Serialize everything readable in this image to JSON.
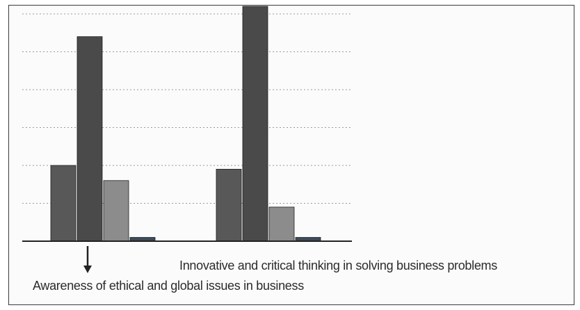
{
  "chart_data": {
    "type": "bar",
    "title": "",
    "xlabel": "",
    "ylabel": "",
    "ylim": [
      0,
      60
    ],
    "grid": true,
    "legend": "none",
    "categories": [
      "Awareness of ethical and global issues in business",
      "Innovative and critical thinking in solving business problems"
    ],
    "series": [
      {
        "values": [
          20,
          19
        ],
        "color": "#585858"
      },
      {
        "values": [
          54,
          62
        ],
        "color": "#4a4a4a"
      },
      {
        "values": [
          16,
          9
        ],
        "color": "#8c8c8c"
      },
      {
        "values": [
          1,
          1
        ],
        "color": "#3d4a5a"
      }
    ]
  }
}
